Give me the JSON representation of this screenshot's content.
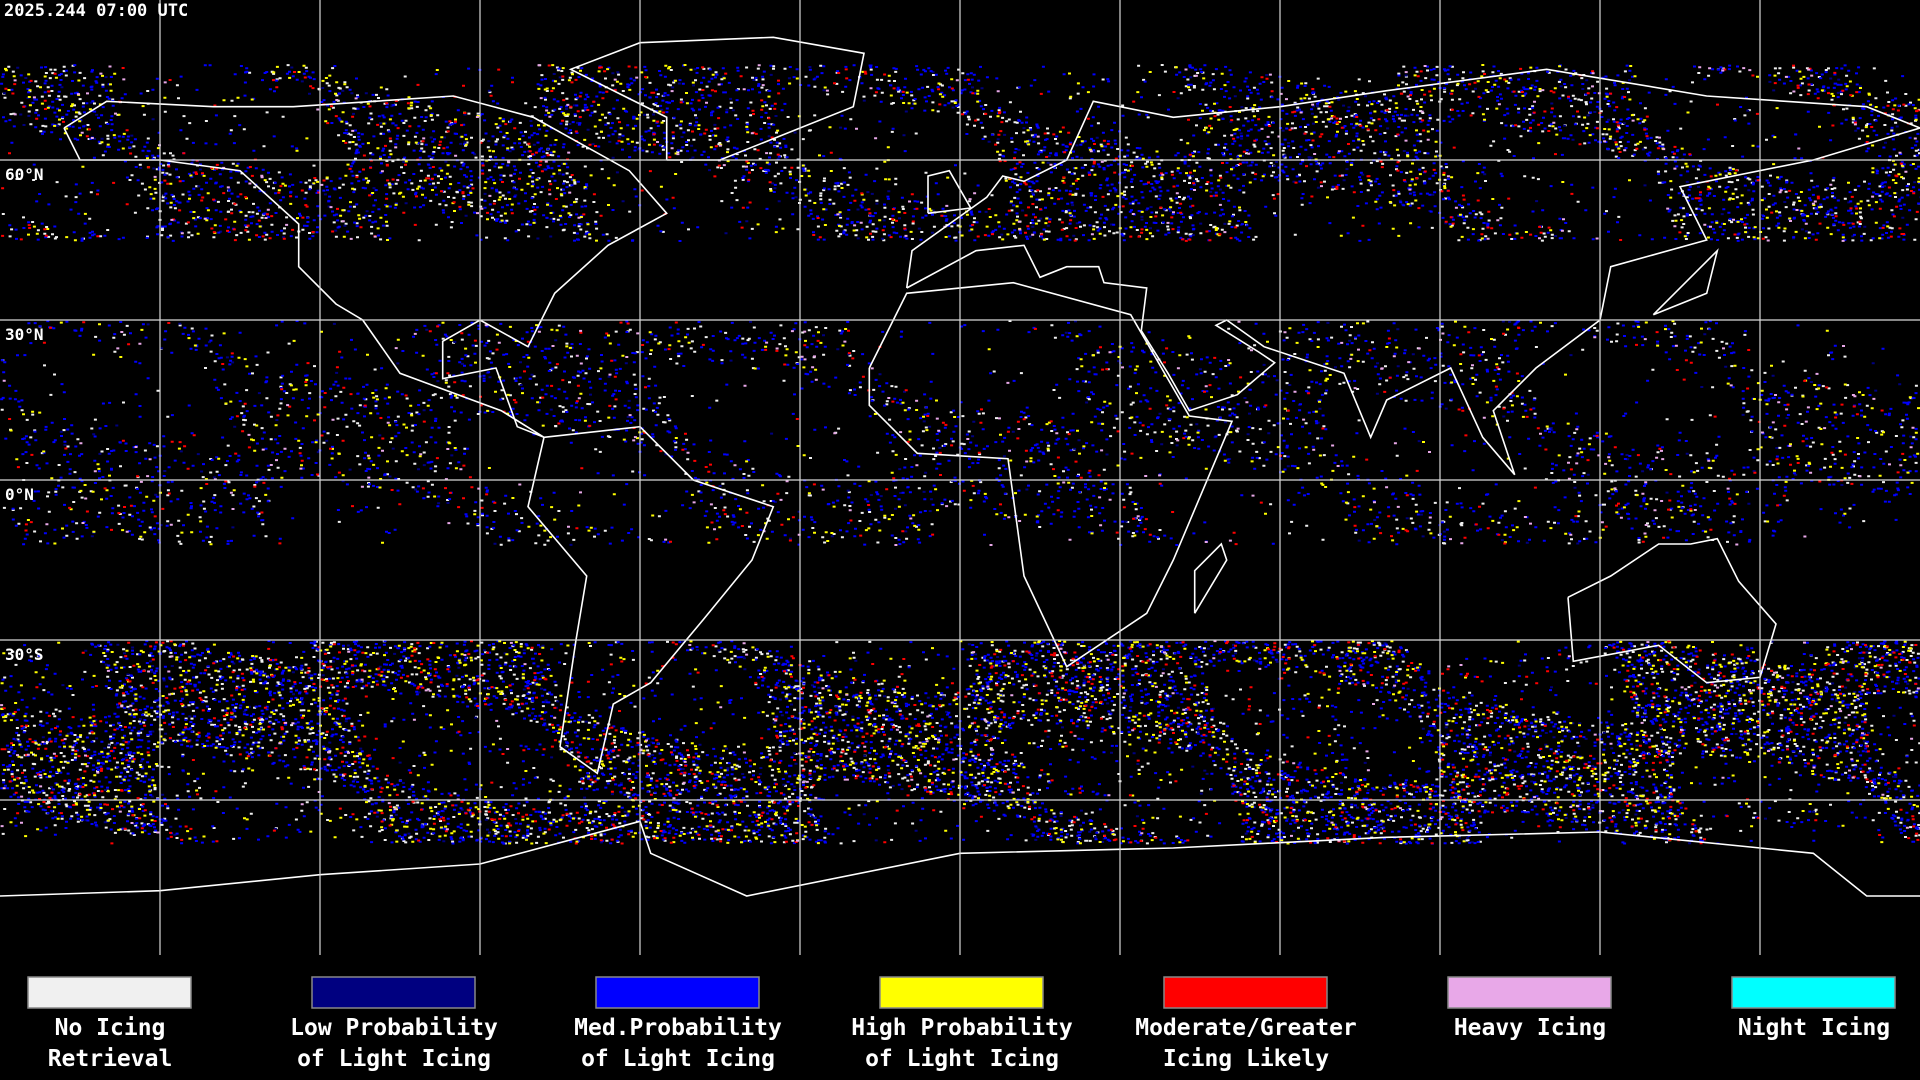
{
  "header": {
    "timestamp": "2025.244 07:00 UTC"
  },
  "map": {
    "lat_labels": [
      "60°N",
      "30°N",
      "0°N",
      "30°S"
    ]
  },
  "legend": [
    {
      "lines": [
        "No Icing",
        "Retrieval"
      ],
      "color": "#f0f0f0"
    },
    {
      "lines": [
        "Low Probability",
        "of Light Icing"
      ],
      "color": "#000080"
    },
    {
      "lines": [
        "Med.Probability",
        "of Light Icing"
      ],
      "color": "#0000ff"
    },
    {
      "lines": [
        "High Probability",
        "of Light Icing"
      ],
      "color": "#ffff00"
    },
    {
      "lines": [
        "Moderate/Greater",
        "Icing Likely"
      ],
      "color": "#ff0000"
    },
    {
      "lines": [
        "Heavy Icing"
      ],
      "color": "#e8a8e8"
    },
    {
      "lines": [
        "Night Icing"
      ],
      "color": "#00ffff"
    }
  ]
}
